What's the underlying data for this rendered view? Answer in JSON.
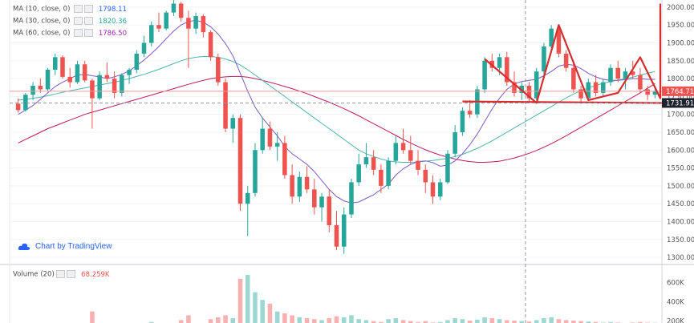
{
  "indicators": {
    "ma10": {
      "label": "MA (10, close, 0)",
      "value": "1798.11",
      "color": "#2962ff"
    },
    "ma30": {
      "label": "MA (30, close, 0)",
      "value": "1820.36",
      "color": "#26a69a"
    },
    "ma60": {
      "label": "MA (60, close, 0)",
      "value": "1786.50",
      "color": "#9c27b0"
    }
  },
  "watermark": "Chart by TradingView",
  "volume": {
    "label": "Volume (20)",
    "value": "68.259K"
  },
  "price_tags": [
    {
      "value": "1764.71",
      "color": "#ef5350"
    },
    {
      "value": "1731.91",
      "color": "#1e222d"
    }
  ],
  "chart_data": {
    "type": "candlestick",
    "price_axis": {
      "ticks": [
        "2000.00",
        "1950.00",
        "1900.00",
        "1850.00",
        "1800.00",
        "1750.00",
        "1700.00",
        "1650.00",
        "1600.00",
        "1550.00",
        "1500.00",
        "1450.00",
        "1400.00",
        "1350.00",
        "1300.00"
      ],
      "range": [
        1280,
        2020
      ]
    },
    "volume_axis": {
      "ticks": [
        "600K",
        "400K",
        "200K"
      ],
      "range": [
        180000,
        680000
      ]
    },
    "candles": [
      [
        1730,
        1745,
        1705,
        1712
      ],
      [
        1712,
        1760,
        1708,
        1755
      ],
      [
        1755,
        1790,
        1740,
        1780
      ],
      [
        1780,
        1800,
        1760,
        1770
      ],
      [
        1770,
        1830,
        1765,
        1825
      ],
      [
        1825,
        1870,
        1810,
        1860
      ],
      [
        1860,
        1865,
        1800,
        1805
      ],
      [
        1805,
        1830,
        1775,
        1790
      ],
      [
        1790,
        1850,
        1785,
        1840
      ],
      [
        1840,
        1850,
        1790,
        1795
      ],
      [
        1795,
        1800,
        1660,
        1745
      ],
      [
        1745,
        1820,
        1740,
        1810
      ],
      [
        1810,
        1845,
        1790,
        1800
      ],
      [
        1800,
        1820,
        1745,
        1760
      ],
      [
        1760,
        1815,
        1750,
        1810
      ],
      [
        1810,
        1830,
        1785,
        1825
      ],
      [
        1825,
        1880,
        1815,
        1870
      ],
      [
        1870,
        1920,
        1860,
        1900
      ],
      [
        1900,
        1960,
        1890,
        1950
      ],
      [
        1950,
        1985,
        1930,
        1940
      ],
      [
        1940,
        1990,
        1935,
        1985
      ],
      [
        1985,
        2030,
        1975,
        2010
      ],
      [
        2010,
        2015,
        1960,
        1970
      ],
      [
        1970,
        1990,
        1830,
        1940
      ],
      [
        1940,
        1985,
        1925,
        1975
      ],
      [
        1975,
        1980,
        1915,
        1930
      ],
      [
        1930,
        1935,
        1850,
        1860
      ],
      [
        1860,
        1870,
        1780,
        1790
      ],
      [
        1790,
        1800,
        1650,
        1660
      ],
      [
        1660,
        1700,
        1620,
        1690
      ],
      [
        1690,
        1700,
        1430,
        1450
      ],
      [
        1450,
        1500,
        1360,
        1480
      ],
      [
        1480,
        1620,
        1470,
        1600
      ],
      [
        1600,
        1690,
        1590,
        1660
      ],
      [
        1660,
        1680,
        1600,
        1610
      ],
      [
        1610,
        1650,
        1570,
        1620
      ],
      [
        1620,
        1640,
        1520,
        1530
      ],
      [
        1530,
        1560,
        1450,
        1470
      ],
      [
        1470,
        1540,
        1455,
        1525
      ],
      [
        1525,
        1555,
        1480,
        1490
      ],
      [
        1490,
        1520,
        1420,
        1440
      ],
      [
        1440,
        1480,
        1400,
        1470
      ],
      [
        1470,
        1490,
        1370,
        1390
      ],
      [
        1390,
        1430,
        1320,
        1330
      ],
      [
        1330,
        1440,
        1310,
        1420
      ],
      [
        1420,
        1520,
        1410,
        1510
      ],
      [
        1510,
        1590,
        1500,
        1560
      ],
      [
        1560,
        1620,
        1550,
        1580
      ],
      [
        1580,
        1600,
        1530,
        1545
      ],
      [
        1545,
        1560,
        1480,
        1500
      ],
      [
        1500,
        1580,
        1490,
        1570
      ],
      [
        1570,
        1640,
        1560,
        1620
      ],
      [
        1620,
        1660,
        1590,
        1600
      ],
      [
        1600,
        1640,
        1560,
        1570
      ],
      [
        1570,
        1600,
        1530,
        1545
      ],
      [
        1545,
        1560,
        1480,
        1510
      ],
      [
        1510,
        1530,
        1450,
        1470
      ],
      [
        1470,
        1520,
        1460,
        1510
      ],
      [
        1510,
        1600,
        1505,
        1590
      ],
      [
        1590,
        1670,
        1580,
        1650
      ],
      [
        1650,
        1720,
        1640,
        1710
      ],
      [
        1710,
        1740,
        1690,
        1700
      ],
      [
        1700,
        1780,
        1690,
        1770
      ],
      [
        1770,
        1860,
        1760,
        1850
      ],
      [
        1850,
        1870,
        1820,
        1830
      ],
      [
        1830,
        1870,
        1810,
        1860
      ],
      [
        1860,
        1875,
        1780,
        1790
      ],
      [
        1790,
        1820,
        1750,
        1760
      ],
      [
        1760,
        1790,
        1740,
        1780
      ],
      [
        1780,
        1790,
        1735,
        1745
      ],
      [
        1745,
        1830,
        1740,
        1820
      ],
      [
        1820,
        1900,
        1810,
        1890
      ],
      [
        1890,
        1950,
        1880,
        1940
      ],
      [
        1940,
        1950,
        1860,
        1870
      ],
      [
        1870,
        1880,
        1820,
        1830
      ],
      [
        1830,
        1850,
        1760,
        1770
      ],
      [
        1770,
        1780,
        1730,
        1745
      ],
      [
        1745,
        1800,
        1740,
        1790
      ],
      [
        1790,
        1810,
        1750,
        1760
      ],
      [
        1760,
        1800,
        1750,
        1790
      ],
      [
        1790,
        1840,
        1780,
        1830
      ],
      [
        1830,
        1850,
        1790,
        1800
      ],
      [
        1800,
        1830,
        1770,
        1820
      ],
      [
        1820,
        1850,
        1800,
        1810
      ],
      [
        1810,
        1830,
        1760,
        1770
      ],
      [
        1770,
        1780,
        1740,
        1755
      ],
      [
        1755,
        1780,
        1745,
        1765
      ]
    ],
    "volumes": [
      120,
      110,
      130,
      150,
      160,
      180,
      170,
      140,
      150,
      165,
      300,
      150,
      140,
      135,
      130,
      125,
      160,
      170,
      190,
      180,
      160,
      175,
      210,
      260,
      180,
      170,
      220,
      240,
      260,
      230,
      640,
      680,
      500,
      420,
      380,
      300,
      280,
      260,
      240,
      230,
      220,
      210,
      230,
      250,
      240,
      260,
      220,
      210,
      200,
      190,
      220,
      230,
      210,
      200,
      190,
      200,
      185,
      190,
      210,
      230,
      220,
      205,
      215,
      240,
      230,
      220,
      210,
      205,
      200,
      195,
      210,
      230,
      240,
      220,
      210,
      205,
      200,
      195,
      190,
      185,
      190,
      185,
      180,
      185,
      190,
      185,
      183
    ],
    "ma10": [
      1700,
      1712,
      1725,
      1742,
      1760,
      1778,
      1790,
      1800,
      1810,
      1812,
      1808,
      1805,
      1800,
      1805,
      1812,
      1822,
      1836,
      1852,
      1870,
      1890,
      1912,
      1933,
      1950,
      1960,
      1963,
      1958,
      1945,
      1925,
      1898,
      1864,
      1815,
      1765,
      1720,
      1690,
      1665,
      1640,
      1610,
      1590,
      1575,
      1560,
      1540,
      1515,
      1490,
      1470,
      1458,
      1452,
      1455,
      1465,
      1475,
      1490,
      1505,
      1530,
      1548,
      1560,
      1568,
      1570,
      1565,
      1555,
      1558,
      1570,
      1590,
      1615,
      1645,
      1680,
      1715,
      1745,
      1770,
      1785,
      1792,
      1795,
      1798,
      1808,
      1820,
      1835,
      1840,
      1838,
      1828,
      1815,
      1805,
      1798,
      1795,
      1795,
      1797,
      1800,
      1800,
      1798,
      1798
    ],
    "ma30": [
      1740,
      1742,
      1745,
      1748,
      1752,
      1757,
      1762,
      1766,
      1770,
      1774,
      1778,
      1782,
      1786,
      1790,
      1795,
      1800,
      1806,
      1812,
      1819,
      1826,
      1834,
      1842,
      1850,
      1856,
      1860,
      1862,
      1862,
      1860,
      1855,
      1848,
      1838,
      1825,
      1810,
      1795,
      1780,
      1765,
      1750,
      1735,
      1720,
      1705,
      1690,
      1675,
      1660,
      1645,
      1630,
      1615,
      1600,
      1590,
      1582,
      1575,
      1570,
      1567,
      1566,
      1566,
      1567,
      1569,
      1571,
      1574,
      1577,
      1582,
      1588,
      1596,
      1605,
      1615,
      1626,
      1638,
      1650,
      1662,
      1674,
      1686,
      1698,
      1710,
      1722,
      1734,
      1746,
      1757,
      1766,
      1774,
      1781,
      1787,
      1792,
      1796,
      1800,
      1804,
      1810,
      1815,
      1820
    ],
    "ma60": [
      1620,
      1630,
      1640,
      1650,
      1660,
      1668,
      1676,
      1684,
      1692,
      1700,
      1706,
      1712,
      1718,
      1724,
      1730,
      1736,
      1742,
      1748,
      1754,
      1760,
      1766,
      1772,
      1778,
      1784,
      1790,
      1795,
      1800,
      1803,
      1805,
      1806,
      1806,
      1804,
      1800,
      1795,
      1790,
      1784,
      1778,
      1772,
      1765,
      1758,
      1750,
      1742,
      1734,
      1725,
      1716,
      1706,
      1696,
      1685,
      1674,
      1663,
      1652,
      1641,
      1630,
      1620,
      1610,
      1601,
      1593,
      1586,
      1580,
      1575,
      1571,
      1568,
      1566,
      1566,
      1567,
      1569,
      1573,
      1578,
      1584,
      1591,
      1599,
      1608,
      1618,
      1629,
      1640,
      1652,
      1664,
      1676,
      1688,
      1700,
      1712,
      1724,
      1736,
      1748,
      1760,
      1773,
      1786
    ]
  }
}
